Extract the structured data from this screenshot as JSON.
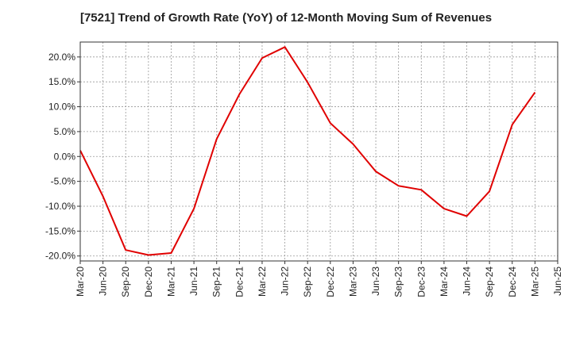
{
  "chart_data": {
    "type": "line",
    "title": "[7521]  Trend of Growth Rate (YoY) of 12-Month Moving Sum of Revenues",
    "xlabel": "",
    "ylabel": "",
    "x_ticks": [
      "Mar-20",
      "Jun-20",
      "Sep-20",
      "Dec-20",
      "Mar-21",
      "Jun-21",
      "Sep-21",
      "Dec-21",
      "Mar-22",
      "Jun-22",
      "Sep-22",
      "Dec-22",
      "Mar-23",
      "Jun-23",
      "Sep-23",
      "Dec-23",
      "Mar-24",
      "Jun-24",
      "Sep-24",
      "Dec-24",
      "Mar-25",
      "Jun-25"
    ],
    "y_ticks": [
      "20.0%",
      "15.0%",
      "10.0%",
      "5.0%",
      "0.0%",
      "-5.0%",
      "-10.0%",
      "-15.0%",
      "-20.0%"
    ],
    "y_tick_values": [
      20,
      15,
      10,
      5,
      0,
      -5,
      -10,
      -15,
      -20
    ],
    "ylim": [
      -21,
      23
    ],
    "grid": true,
    "series": [
      {
        "color": "#e00000",
        "x": [
          "Mar-20",
          "Jun-20",
          "Sep-20",
          "Dec-20",
          "Mar-21",
          "Jun-21",
          "Sep-21",
          "Dec-21",
          "Mar-22",
          "Jun-22",
          "Sep-22",
          "Dec-22",
          "Mar-23",
          "Jun-23",
          "Sep-23",
          "Dec-23",
          "Mar-24",
          "Jun-24",
          "Sep-24",
          "Dec-24",
          "Mar-25"
        ],
        "values": [
          1.2,
          -8.0,
          -18.8,
          -19.8,
          -19.4,
          -10.5,
          3.5,
          12.5,
          19.8,
          22.0,
          14.9,
          6.7,
          2.5,
          -3.0,
          -5.9,
          -6.7,
          -10.5,
          -12.0,
          -7.0,
          6.4,
          12.9
        ]
      }
    ]
  }
}
